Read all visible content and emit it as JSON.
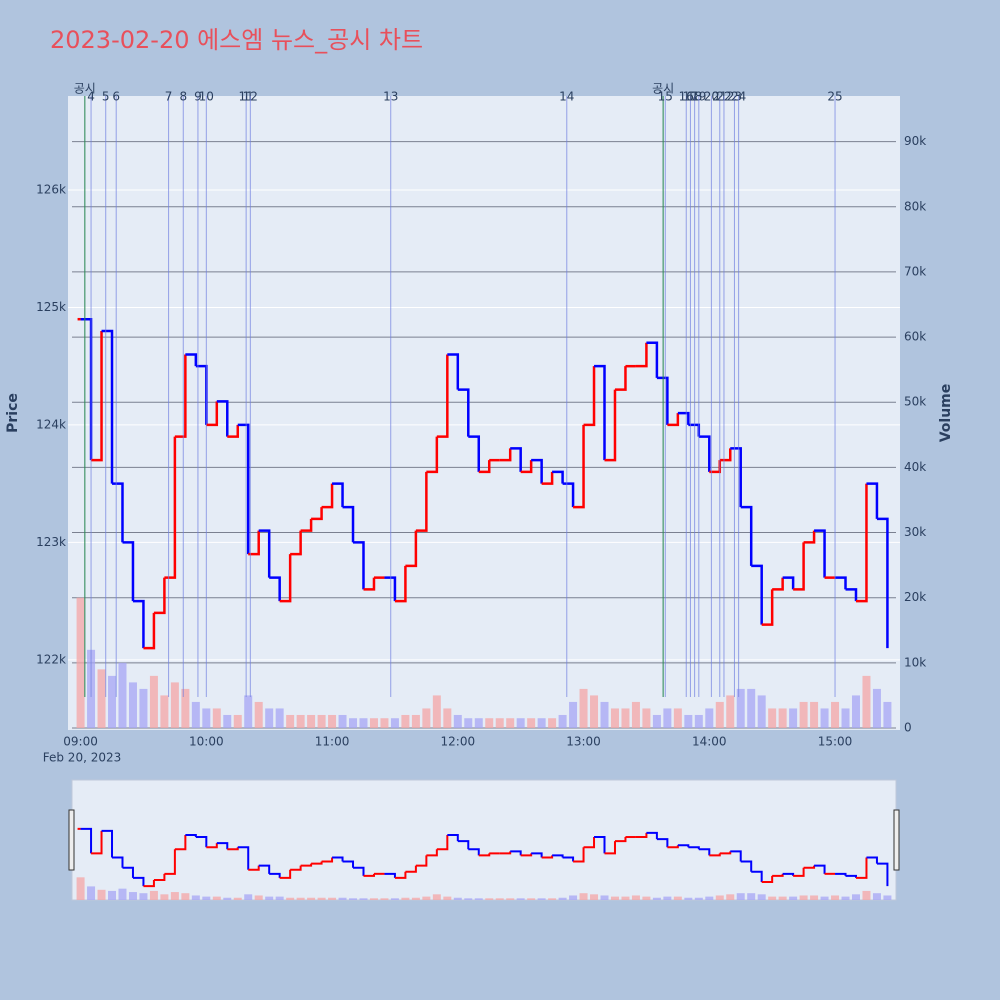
{
  "chart_data": {
    "type": "line",
    "title": "2023-02-20 에스엠 뉴스_공시 차트",
    "y_label": "Price",
    "y2_label": "Volume",
    "x_sublabel": "Feb 20, 2023",
    "x": [
      "09:00",
      "09:05",
      "09:10",
      "09:15",
      "09:20",
      "09:25",
      "09:30",
      "09:35",
      "09:40",
      "09:45",
      "09:50",
      "09:55",
      "10:00",
      "10:05",
      "10:10",
      "10:15",
      "10:20",
      "10:25",
      "10:30",
      "10:35",
      "10:40",
      "10:45",
      "10:50",
      "10:55",
      "11:00",
      "11:05",
      "11:10",
      "11:15",
      "11:20",
      "11:25",
      "11:30",
      "11:35",
      "11:40",
      "11:45",
      "11:50",
      "11:55",
      "12:00",
      "12:05",
      "12:10",
      "12:15",
      "12:20",
      "12:25",
      "12:30",
      "12:35",
      "12:40",
      "12:45",
      "12:50",
      "12:55",
      "13:00",
      "13:05",
      "13:10",
      "13:15",
      "13:20",
      "13:25",
      "13:30",
      "13:35",
      "13:40",
      "13:45",
      "13:50",
      "13:55",
      "14:00",
      "14:05",
      "14:10",
      "14:15",
      "14:20",
      "14:25",
      "14:30",
      "14:35",
      "14:40",
      "14:45",
      "14:50",
      "14:55",
      "15:00",
      "15:05",
      "15:10",
      "15:15",
      "15:20",
      "15:25"
    ],
    "series": [
      {
        "up_color": "#ff0000",
        "down_color": "#0000ff",
        "values": [
          124900,
          123700,
          124800,
          123500,
          123000,
          122500,
          122100,
          122400,
          122700,
          123900,
          124600,
          124500,
          124000,
          124200,
          123900,
          124000,
          122900,
          123100,
          122700,
          122500,
          122900,
          123100,
          123200,
          123300,
          123500,
          123300,
          123000,
          122600,
          122700,
          122700,
          122500,
          122800,
          123100,
          123600,
          123900,
          124600,
          124300,
          123900,
          123600,
          123700,
          123700,
          123800,
          123600,
          123700,
          123500,
          123600,
          123500,
          123300,
          124000,
          124500,
          123700,
          124300,
          124500,
          124500,
          124700,
          124400,
          124000,
          124100,
          124000,
          123900,
          123600,
          123700,
          123800,
          123300,
          122800,
          122300,
          122600,
          122700,
          122600,
          123000,
          123100,
          122700,
          122700,
          122600,
          122500,
          123500,
          123200,
          122100
        ]
      },
      {
        "axis": "y2",
        "up_color": "#f4a6a6",
        "down_color": "#a6a6f4",
        "values": [
          20000,
          12000,
          9000,
          8000,
          10000,
          7000,
          6000,
          8000,
          5000,
          7000,
          6000,
          4000,
          3000,
          3000,
          2000,
          2000,
          5000,
          4000,
          3000,
          3000,
          2000,
          2000,
          2000,
          2000,
          2000,
          2000,
          1500,
          1500,
          1500,
          1500,
          1500,
          2000,
          2000,
          3000,
          5000,
          3000,
          2000,
          1500,
          1500,
          1500,
          1500,
          1500,
          1500,
          1500,
          1500,
          1500,
          2000,
          4000,
          6000,
          5000,
          4000,
          3000,
          3000,
          4000,
          3000,
          2000,
          3000,
          3000,
          2000,
          2000,
          3000,
          4000,
          5000,
          6000,
          6000,
          5000,
          3000,
          3000,
          3000,
          4000,
          4000,
          3000,
          4000,
          3000,
          5000,
          8000,
          6000,
          4000
        ]
      }
    ],
    "xlim": [
      "08:54",
      "15:31"
    ],
    "xticks": [
      "09:00",
      "10:00",
      "11:00",
      "12:00",
      "13:00",
      "14:00",
      "15:00"
    ],
    "ylim": [
      121420,
      126800
    ],
    "yticks": [
      {
        "value": 122000,
        "label": "122k"
      },
      {
        "value": 123000,
        "label": "123k"
      },
      {
        "value": 124000,
        "label": "124k"
      },
      {
        "value": 125000,
        "label": "125k"
      },
      {
        "value": 126000,
        "label": "126k"
      }
    ],
    "y2lim": [
      0,
      97000
    ],
    "y2ticks": [
      0,
      {
        "value": 10000,
        "label": "10k"
      },
      {
        "value": 20000,
        "label": "20k"
      },
      {
        "value": 30000,
        "label": "30k"
      },
      {
        "value": 40000,
        "label": "40k"
      },
      {
        "value": 50000,
        "label": "50k"
      },
      {
        "value": 60000,
        "label": "60k"
      },
      {
        "value": 70000,
        "label": "70k"
      },
      {
        "value": 80000,
        "label": "80k"
      },
      {
        "value": 90000,
        "label": "90k"
      }
    ],
    "events": [
      {
        "time": "09:02",
        "label": "공시",
        "color": "#2e8b57"
      },
      {
        "time": "09:05",
        "label": "4",
        "color": "#6f7fe0"
      },
      {
        "time": "09:12",
        "label": "5",
        "color": "#6f7fe0"
      },
      {
        "time": "09:17",
        "label": "6",
        "color": "#6f7fe0"
      },
      {
        "time": "09:42",
        "label": "7",
        "color": "#6f7fe0"
      },
      {
        "time": "09:49",
        "label": "8",
        "color": "#6f7fe0"
      },
      {
        "time": "09:56",
        "label": "9",
        "color": "#6f7fe0"
      },
      {
        "time": "10:00",
        "label": "10",
        "color": "#6f7fe0"
      },
      {
        "time": "10:19",
        "label": "11",
        "color": "#6f7fe0"
      },
      {
        "time": "10:21",
        "label": "12",
        "color": "#6f7fe0"
      },
      {
        "time": "11:28",
        "label": "13",
        "color": "#6f7fe0"
      },
      {
        "time": "12:52",
        "label": "14",
        "color": "#6f7fe0"
      },
      {
        "time": "13:38",
        "label": "공시",
        "color": "#2e8b57"
      },
      {
        "time": "13:39",
        "label": "15",
        "color": "#6f7fe0"
      },
      {
        "time": "13:49",
        "label": "16",
        "color": "#6f7fe0"
      },
      {
        "time": "13:51",
        "label": "17",
        "color": "#6f7fe0"
      },
      {
        "time": "13:53",
        "label": "18",
        "color": "#6f7fe0"
      },
      {
        "time": "13:55",
        "label": "19",
        "color": "#6f7fe0"
      },
      {
        "time": "14:01",
        "label": "20",
        "color": "#6f7fe0"
      },
      {
        "time": "14:05",
        "label": "21",
        "color": "#6f7fe0"
      },
      {
        "time": "14:07",
        "label": "22",
        "color": "#6f7fe0"
      },
      {
        "time": "14:12",
        "label": "23",
        "color": "#6f7fe0"
      },
      {
        "time": "14:14",
        "label": "24",
        "color": "#6f7fe0"
      },
      {
        "time": "15:00",
        "label": "25",
        "color": "#6f7fe0"
      }
    ]
  }
}
